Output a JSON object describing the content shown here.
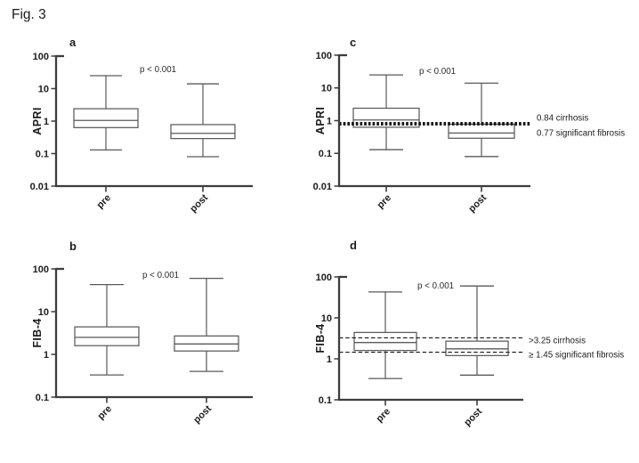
{
  "figure": {
    "title": "Fig. 3"
  },
  "colors": {
    "background": "#ffffff",
    "axis": "#3d3d3d",
    "box_border": "#5a5a5a",
    "box_fill": "#ffffff",
    "whisker": "#5a5a5a",
    "text": "#1c1c1c",
    "annotation": "#2d2d2d",
    "threshold": "#171717"
  },
  "chart_data": [
    {
      "panel": "a",
      "type": "boxplot",
      "yscale": "log",
      "ylabel": "APRI",
      "ylim": [
        0.01,
        100
      ],
      "yticks": [
        {
          "value": 100,
          "label": "100"
        },
        {
          "value": 10,
          "label": "10"
        },
        {
          "value": 1,
          "label": "1"
        },
        {
          "value": 0.1,
          "label": "0.1"
        },
        {
          "value": 0.01,
          "label": "0.01"
        }
      ],
      "annotation": "p < 0.001",
      "categories": [
        "pre",
        "post"
      ],
      "boxes": [
        {
          "category": "pre",
          "min": 0.13,
          "q1": 0.63,
          "median": 1.05,
          "q3": 2.4,
          "max": 25
        },
        {
          "category": "post",
          "min": 0.08,
          "q1": 0.29,
          "median": 0.42,
          "q3": 0.78,
          "max": 14
        }
      ],
      "thresholds": []
    },
    {
      "panel": "b",
      "type": "boxplot",
      "yscale": "log",
      "ylabel": "FIB-4",
      "ylim": [
        0.1,
        100
      ],
      "yticks": [
        {
          "value": 100,
          "label": "100"
        },
        {
          "value": 10,
          "label": "10"
        },
        {
          "value": 1,
          "label": "1"
        },
        {
          "value": 0.1,
          "label": "0.1"
        }
      ],
      "annotation": "p < 0.001",
      "categories": [
        "pre",
        "post"
      ],
      "boxes": [
        {
          "category": "pre",
          "min": 0.33,
          "q1": 1.6,
          "median": 2.5,
          "q3": 4.4,
          "max": 43
        },
        {
          "category": "post",
          "min": 0.4,
          "q1": 1.2,
          "median": 1.75,
          "q3": 2.7,
          "max": 60
        }
      ],
      "thresholds": []
    },
    {
      "panel": "c",
      "type": "boxplot",
      "yscale": "log",
      "ylabel": "APRI",
      "ylim": [
        0.01,
        100
      ],
      "yticks": [
        {
          "value": 100,
          "label": "100"
        },
        {
          "value": 10,
          "label": "10"
        },
        {
          "value": 1,
          "label": "1"
        },
        {
          "value": 0.1,
          "label": "0.1"
        },
        {
          "value": 0.01,
          "label": "0.01"
        }
      ],
      "annotation": "p < 0.001",
      "categories": [
        "pre",
        "post"
      ],
      "boxes": [
        {
          "category": "pre",
          "min": 0.13,
          "q1": 0.63,
          "median": 1.05,
          "q3": 2.4,
          "max": 25
        },
        {
          "category": "post",
          "min": 0.08,
          "q1": 0.29,
          "median": 0.42,
          "q3": 0.78,
          "max": 14
        }
      ],
      "thresholds": [
        {
          "value": 0.84,
          "label": "0.84 cirrhosis",
          "style": "bold_dotted",
          "label_dy": -6
        },
        {
          "value": 0.77,
          "label": "0.77 significant fibrosis",
          "style": "bold_dotted",
          "label_dy": 10
        }
      ]
    },
    {
      "panel": "d",
      "type": "boxplot",
      "yscale": "log",
      "ylabel": "FIB-4",
      "ylim": [
        0.1,
        100
      ],
      "yticks": [
        {
          "value": 100,
          "label": "100"
        },
        {
          "value": 10,
          "label": "10"
        },
        {
          "value": 1,
          "label": "1"
        },
        {
          "value": 0.1,
          "label": "0.1"
        }
      ],
      "annotation": "p < 0.001",
      "categories": [
        "pre",
        "post"
      ],
      "boxes": [
        {
          "category": "pre",
          "min": 0.33,
          "q1": 1.6,
          "median": 2.5,
          "q3": 4.4,
          "max": 43
        },
        {
          "category": "post",
          "min": 0.4,
          "q1": 1.2,
          "median": 1.75,
          "q3": 2.7,
          "max": 60
        }
      ],
      "thresholds": [
        {
          "value": 3.25,
          "label": ">3.25 cirrhosis",
          "style": "dashed",
          "label_dy": 3
        },
        {
          "value": 1.45,
          "label": "≥ 1.45 significant fibrosis",
          "style": "dashed",
          "label_dy": 3
        }
      ]
    }
  ]
}
